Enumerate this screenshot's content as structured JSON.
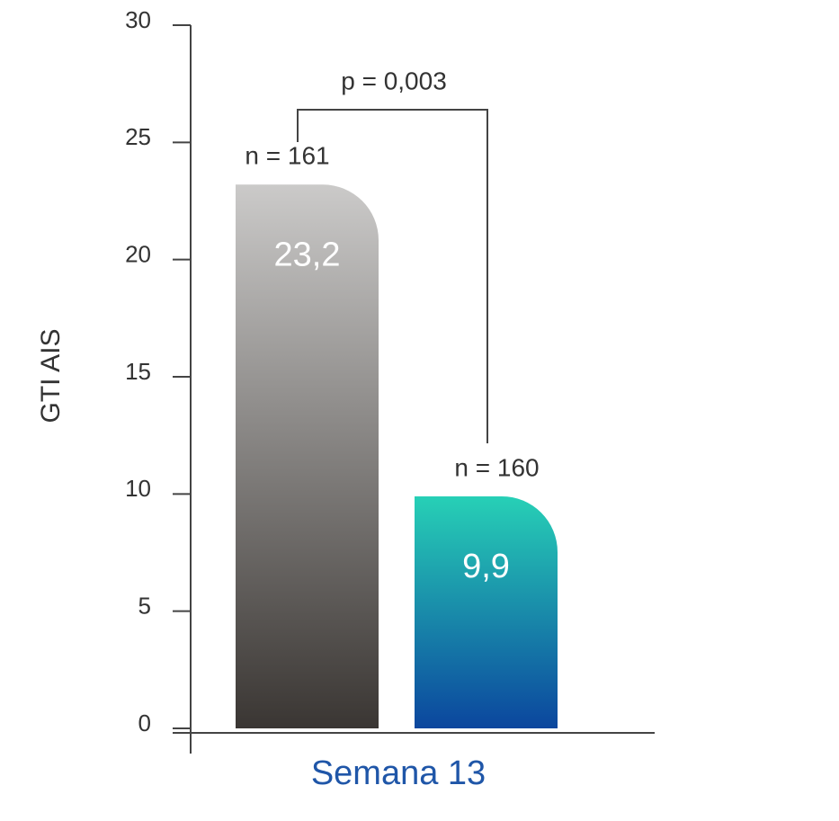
{
  "chart_data": {
    "type": "bar",
    "ylabel": "GTI AIS",
    "categories": [
      "Semana 13"
    ],
    "series": [
      {
        "values": [
          23.2
        ],
        "value_labels": [
          "23,2"
        ],
        "n_label": "n = 161",
        "gradient": [
          "#cbcac9",
          "#3a3633"
        ]
      },
      {
        "values": [
          9.9
        ],
        "value_labels": [
          "9,9"
        ],
        "n_label": "n = 160",
        "gradient": [
          "#27d0b6",
          "#0b469e"
        ]
      }
    ],
    "annotation": "p = 0,003",
    "ylim": [
      0,
      30
    ],
    "yticks": [
      0,
      5,
      10,
      15,
      20,
      25,
      30
    ]
  }
}
